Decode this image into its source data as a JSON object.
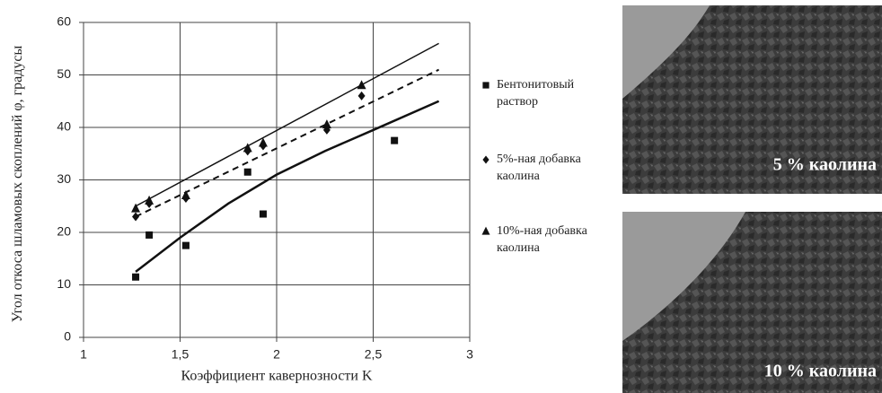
{
  "chart_data": {
    "type": "scatter",
    "y_label": "Угол откоса шламовых скоплений φ, градусы",
    "x_label": "Коэффициент кавернозности K",
    "xlim": [
      1,
      3
    ],
    "xticks": [
      1,
      {
        "value": 1.5,
        "label": "1,5"
      },
      2,
      {
        "value": 2.5,
        "label": "2,5"
      },
      3
    ],
    "ylim": [
      0,
      60
    ],
    "yticks": [
      0,
      10,
      20,
      30,
      40,
      50,
      60
    ],
    "grid": true,
    "legend": "right",
    "series": [
      {
        "name": "Бентонитовый раствор",
        "marker": "square",
        "color": "#111111",
        "x": [
          1.27,
          1.34,
          1.53,
          1.85,
          1.93,
          2.61
        ],
        "values": [
          11.5,
          19.5,
          17.5,
          31.5,
          23.5,
          37.5
        ],
        "trend": {
          "line_style": "solid",
          "line_width": 2.5,
          "x": [
            1.27,
            1.5,
            1.75,
            2,
            2.25,
            2.5,
            2.84
          ],
          "values": [
            12.5,
            19,
            25.5,
            31,
            35.5,
            39.5,
            45
          ]
        }
      },
      {
        "name": "5%-ная добавка каолина",
        "marker": "diamond",
        "color": "#111111",
        "x": [
          1.27,
          1.34,
          1.53,
          1.85,
          1.93,
          2.26,
          2.44
        ],
        "values": [
          23,
          25.5,
          26.5,
          35.5,
          36.5,
          39.5,
          46
        ],
        "trend": {
          "line_style": "dashed",
          "line_width": 2,
          "x": [
            1.27,
            2.84
          ],
          "values": [
            23,
            51
          ]
        }
      },
      {
        "name": "10%-ная добавка каолина",
        "marker": "triangle",
        "color": "#111111",
        "x": [
          1.27,
          1.34,
          1.53,
          1.85,
          1.93,
          2.26,
          2.44
        ],
        "values": [
          24.5,
          26,
          27,
          36,
          37,
          40.5,
          48
        ],
        "trend": {
          "line_style": "solid",
          "line_width": 1.5,
          "x": [
            1.27,
            2.84
          ],
          "values": [
            25,
            56
          ]
        }
      }
    ]
  },
  "photos": [
    {
      "caption": "5 % каолина"
    },
    {
      "caption": "10 % каолина"
    }
  ]
}
